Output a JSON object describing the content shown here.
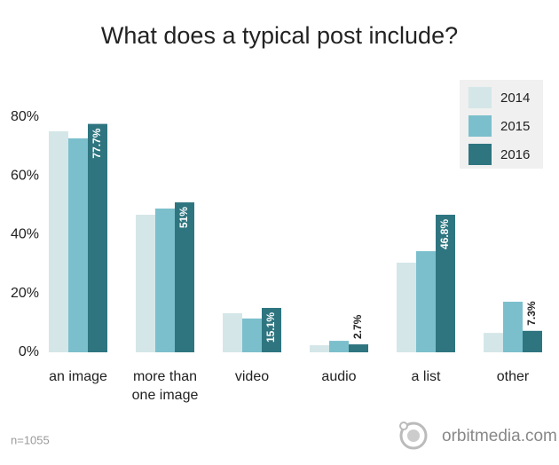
{
  "chart_data": {
    "type": "bar",
    "title": "What does a typical post include?",
    "categories": [
      "an image",
      "more than one image",
      "video",
      "audio",
      "a list",
      "other"
    ],
    "series": [
      {
        "name": "2014",
        "color": "#d4e6e8",
        "values": [
          75.2,
          46.8,
          13.3,
          2.4,
          30.5,
          6.6
        ]
      },
      {
        "name": "2015",
        "color": "#7bbfcc",
        "values": [
          72.8,
          48.9,
          11.5,
          3.9,
          34.4,
          17.2
        ]
      },
      {
        "name": "2016",
        "color": "#2e7580",
        "values": [
          77.7,
          51,
          15.1,
          2.7,
          46.8,
          7.3
        ],
        "value_labels": [
          "77.7%",
          "51%",
          "15.1%",
          "2.7%",
          "46.8%",
          "7.3%"
        ]
      }
    ],
    "ylim": [
      0,
      80
    ],
    "yticks": [
      {
        "value": 0,
        "label": "0%"
      },
      {
        "value": 20,
        "label": "20%"
      },
      {
        "value": 40,
        "label": "40%"
      },
      {
        "value": 60,
        "label": "60%"
      },
      {
        "value": 80,
        "label": "80%"
      }
    ],
    "grid": false,
    "legend": "top-right",
    "footnote": "n=1055",
    "source": "orbitmedia.com"
  }
}
